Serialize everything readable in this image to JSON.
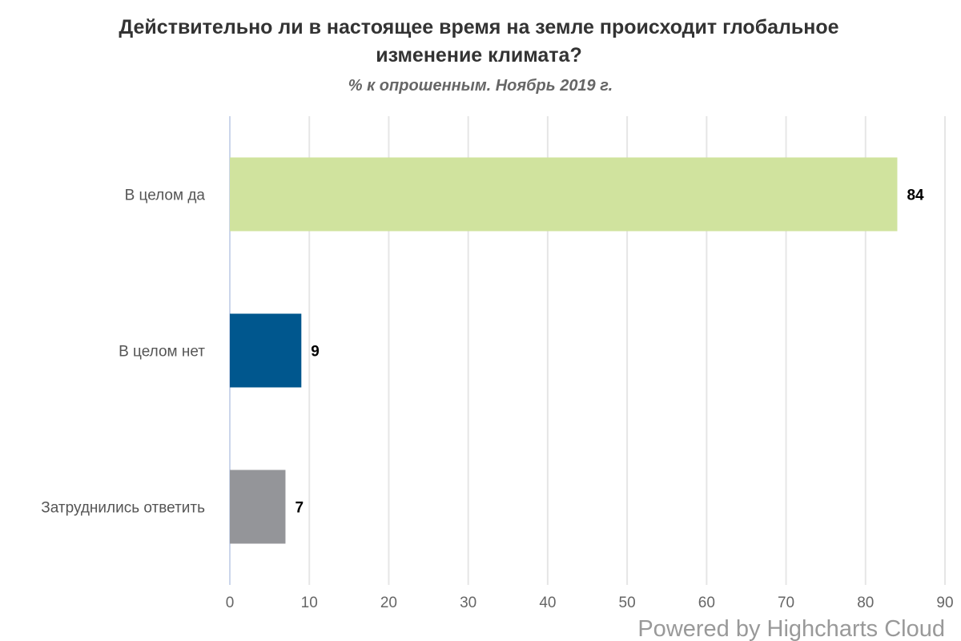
{
  "chart_data": {
    "type": "bar",
    "orientation": "horizontal",
    "title": "Действительно ли в настоящее время на земле происходит глобальное изменение климата?",
    "title_lines": [
      "Действительно ли в настоящее время на земле происходит глобальное",
      "изменение климата?"
    ],
    "subtitle": "% к опрошенным. Ноябрь 2019 г.",
    "categories": [
      "В целом да",
      "В целом нет",
      "Затруднились ответить"
    ],
    "values": [
      84,
      9,
      7
    ],
    "colors": [
      "#d0e39e",
      "#00578e",
      "#949599"
    ],
    "xlim": [
      0,
      90
    ],
    "ticks": [
      "0",
      "10",
      "20",
      "30",
      "40",
      "50",
      "60",
      "70",
      "80",
      "90"
    ],
    "grid": true,
    "data_labels": true,
    "legend": "none",
    "xlabel": "",
    "ylabel": ""
  },
  "credit": "Powered by Highcharts Cloud"
}
